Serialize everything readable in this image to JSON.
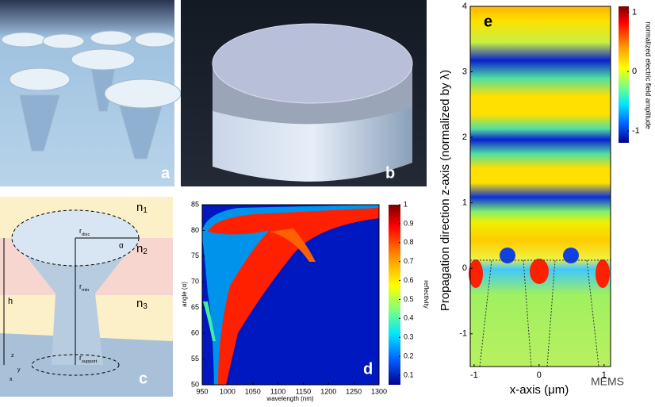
{
  "panels": {
    "a": {
      "label": "a"
    },
    "b": {
      "label": "b"
    },
    "c": {
      "label": "c",
      "media": [
        {
          "base": "n",
          "sub": "1"
        },
        {
          "base": "n",
          "sub": "2"
        },
        {
          "base": "n",
          "sub": "3"
        }
      ],
      "radii": [
        {
          "base": "r",
          "sub": "disc"
        },
        {
          "base": "r",
          "sub": "min"
        },
        {
          "base": "r",
          "sub": "support"
        }
      ],
      "height": "h",
      "angle": "α",
      "axes": [
        "z",
        "y",
        "x"
      ]
    },
    "d": {
      "label": "d",
      "xlabel": "wavelength (nm)",
      "ylabel": "angle (α)",
      "colorbar_label": "reflectivity",
      "xlim": [
        950,
        1300
      ],
      "xticks": [
        950,
        1000,
        1050,
        1100,
        1150,
        1200,
        1250,
        1300
      ],
      "ylim": [
        50,
        85
      ],
      "yticks": [
        50,
        55,
        60,
        65,
        70,
        75,
        80,
        85
      ],
      "clim": [
        0.05,
        1
      ],
      "cticks": [
        0.1,
        0.2,
        0.3,
        0.4,
        0.5,
        0.6,
        0.7,
        0.8,
        0.9,
        1
      ]
    },
    "e": {
      "label": "e",
      "xlabel": "x-axis (μm)",
      "ylabel": "Propagation direction z-axis (normalized by λ)",
      "colorbar_label": "normalized electric field amplitude",
      "xlim": [
        -1.06,
        1.1
      ],
      "xticks": [
        -1,
        0,
        1
      ],
      "ylim": [
        -1.5,
        4
      ],
      "yticks": [
        -1,
        0,
        1,
        2,
        3,
        4
      ],
      "clim": [
        -1.2,
        1.1
      ],
      "cticks": [
        -1,
        0,
        1
      ]
    }
  },
  "watermark": "MEMS"
}
